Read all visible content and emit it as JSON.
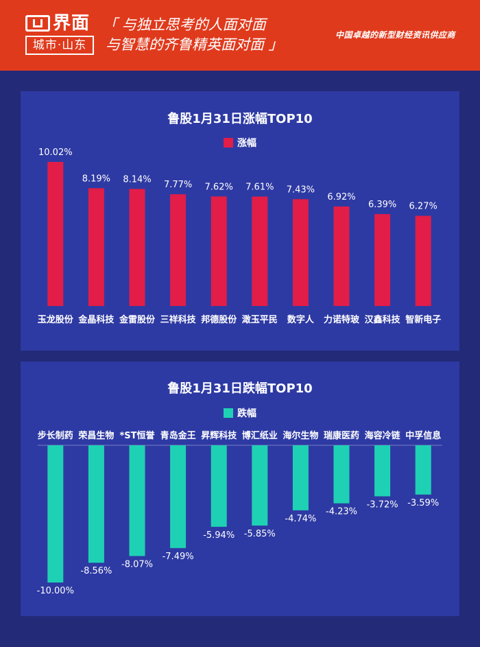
{
  "header": {
    "logo_name": "界面",
    "logo_sub": "城市·山东",
    "slogan_line1": "「 与独立思考的人面对面",
    "slogan_line2": "与智慧的齐鲁精英面对面 」",
    "tagline": "中国卓越的新型财经资讯供应商"
  },
  "watermark": "界面 城市·山东",
  "colors": {
    "gain": "#e11d48",
    "loss": "#1fd1b4",
    "panel": "#2e3aa3",
    "background": "#232a78",
    "header": "#e03a1d"
  },
  "chart_data": [
    {
      "type": "bar",
      "title": "鲁股1月31日涨幅TOP10",
      "categories": [
        "玉龙股份",
        "金晶科技",
        "金雷股份",
        "三祥科技",
        "邦德股份",
        "澉玉平民",
        "数字人",
        "力诺特玻",
        "汉鑫科技",
        "智新电子"
      ],
      "series": [
        {
          "name": "涨幅",
          "values": [
            10.02,
            8.19,
            8.14,
            7.77,
            7.62,
            7.61,
            7.43,
            6.92,
            6.39,
            6.27
          ]
        }
      ],
      "value_labels": [
        "10.02%",
        "8.19%",
        "8.14%",
        "7.77%",
        "7.62%",
        "7.61%",
        "7.43%",
        "6.92%",
        "6.39%",
        "6.27%"
      ],
      "unit": "%",
      "legend_position": "top-center",
      "grid": false
    },
    {
      "type": "bar",
      "title": "鲁股1月31日跌幅TOP10",
      "categories": [
        "步长制药",
        "荣昌生物",
        "*ST恒誉",
        "青岛金王",
        "昇辉科技",
        "博汇纸业",
        "海尔生物",
        "瑞康医药",
        "海容冷链",
        "中孚信息"
      ],
      "series": [
        {
          "name": "跌幅",
          "values": [
            -10.0,
            -8.56,
            -8.07,
            -7.49,
            -5.94,
            -5.85,
            -4.74,
            -4.23,
            -3.72,
            -3.59
          ]
        }
      ],
      "value_labels": [
        "-10.00%",
        "-8.56%",
        "-8.07%",
        "-7.49%",
        "-5.94%",
        "-5.85%",
        "-4.74%",
        "-4.23%",
        "-3.72%",
        "-3.59%"
      ],
      "unit": "%",
      "legend_position": "top-center",
      "grid": false
    }
  ]
}
